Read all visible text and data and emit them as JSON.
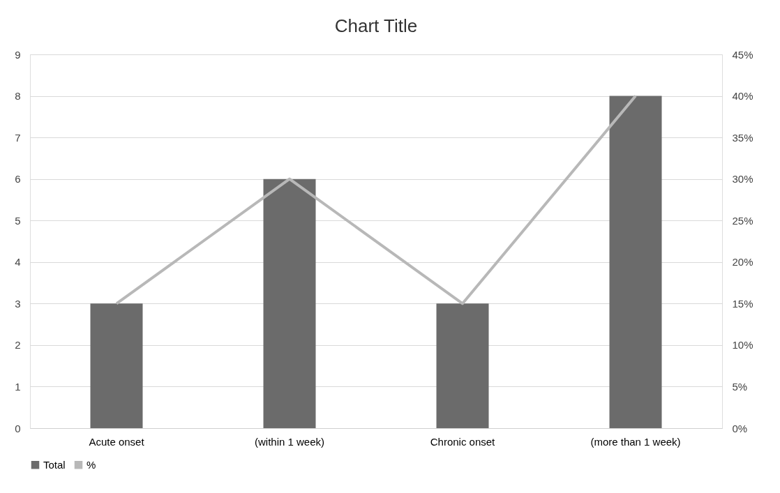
{
  "chart_data": {
    "type": "bar",
    "title": "Chart Title",
    "categories": [
      "Acute onset",
      "(within 1 week)",
      "Chronic onset",
      "(more than 1 week)"
    ],
    "series": [
      {
        "name": "Total",
        "color": "#6b6b6b",
        "values": [
          3,
          6,
          3,
          8
        ]
      },
      {
        "name": "%",
        "type": "line",
        "axis": "y2",
        "color": "#b8b8b8",
        "values": [
          15,
          30,
          15,
          40
        ]
      }
    ],
    "ylim": [
      0,
      9
    ],
    "yticks": [
      0,
      1,
      2,
      3,
      4,
      5,
      6,
      7,
      8,
      9
    ],
    "y2lim": [
      0,
      45
    ],
    "y2ticks": [
      {
        "value": 0,
        "label": "0%"
      },
      {
        "value": 5,
        "label": "5%"
      },
      {
        "value": 10,
        "label": "10%"
      },
      {
        "value": 15,
        "label": "15%"
      },
      {
        "value": 20,
        "label": "20%"
      },
      {
        "value": 25,
        "label": "25%"
      },
      {
        "value": 30,
        "label": "30%"
      },
      {
        "value": 35,
        "label": "35%"
      },
      {
        "value": 40,
        "label": "40%"
      },
      {
        "value": 45,
        "label": "45%"
      }
    ],
    "grid": "y",
    "legend": "bottom",
    "marker": "none",
    "line_style": "solid"
  }
}
